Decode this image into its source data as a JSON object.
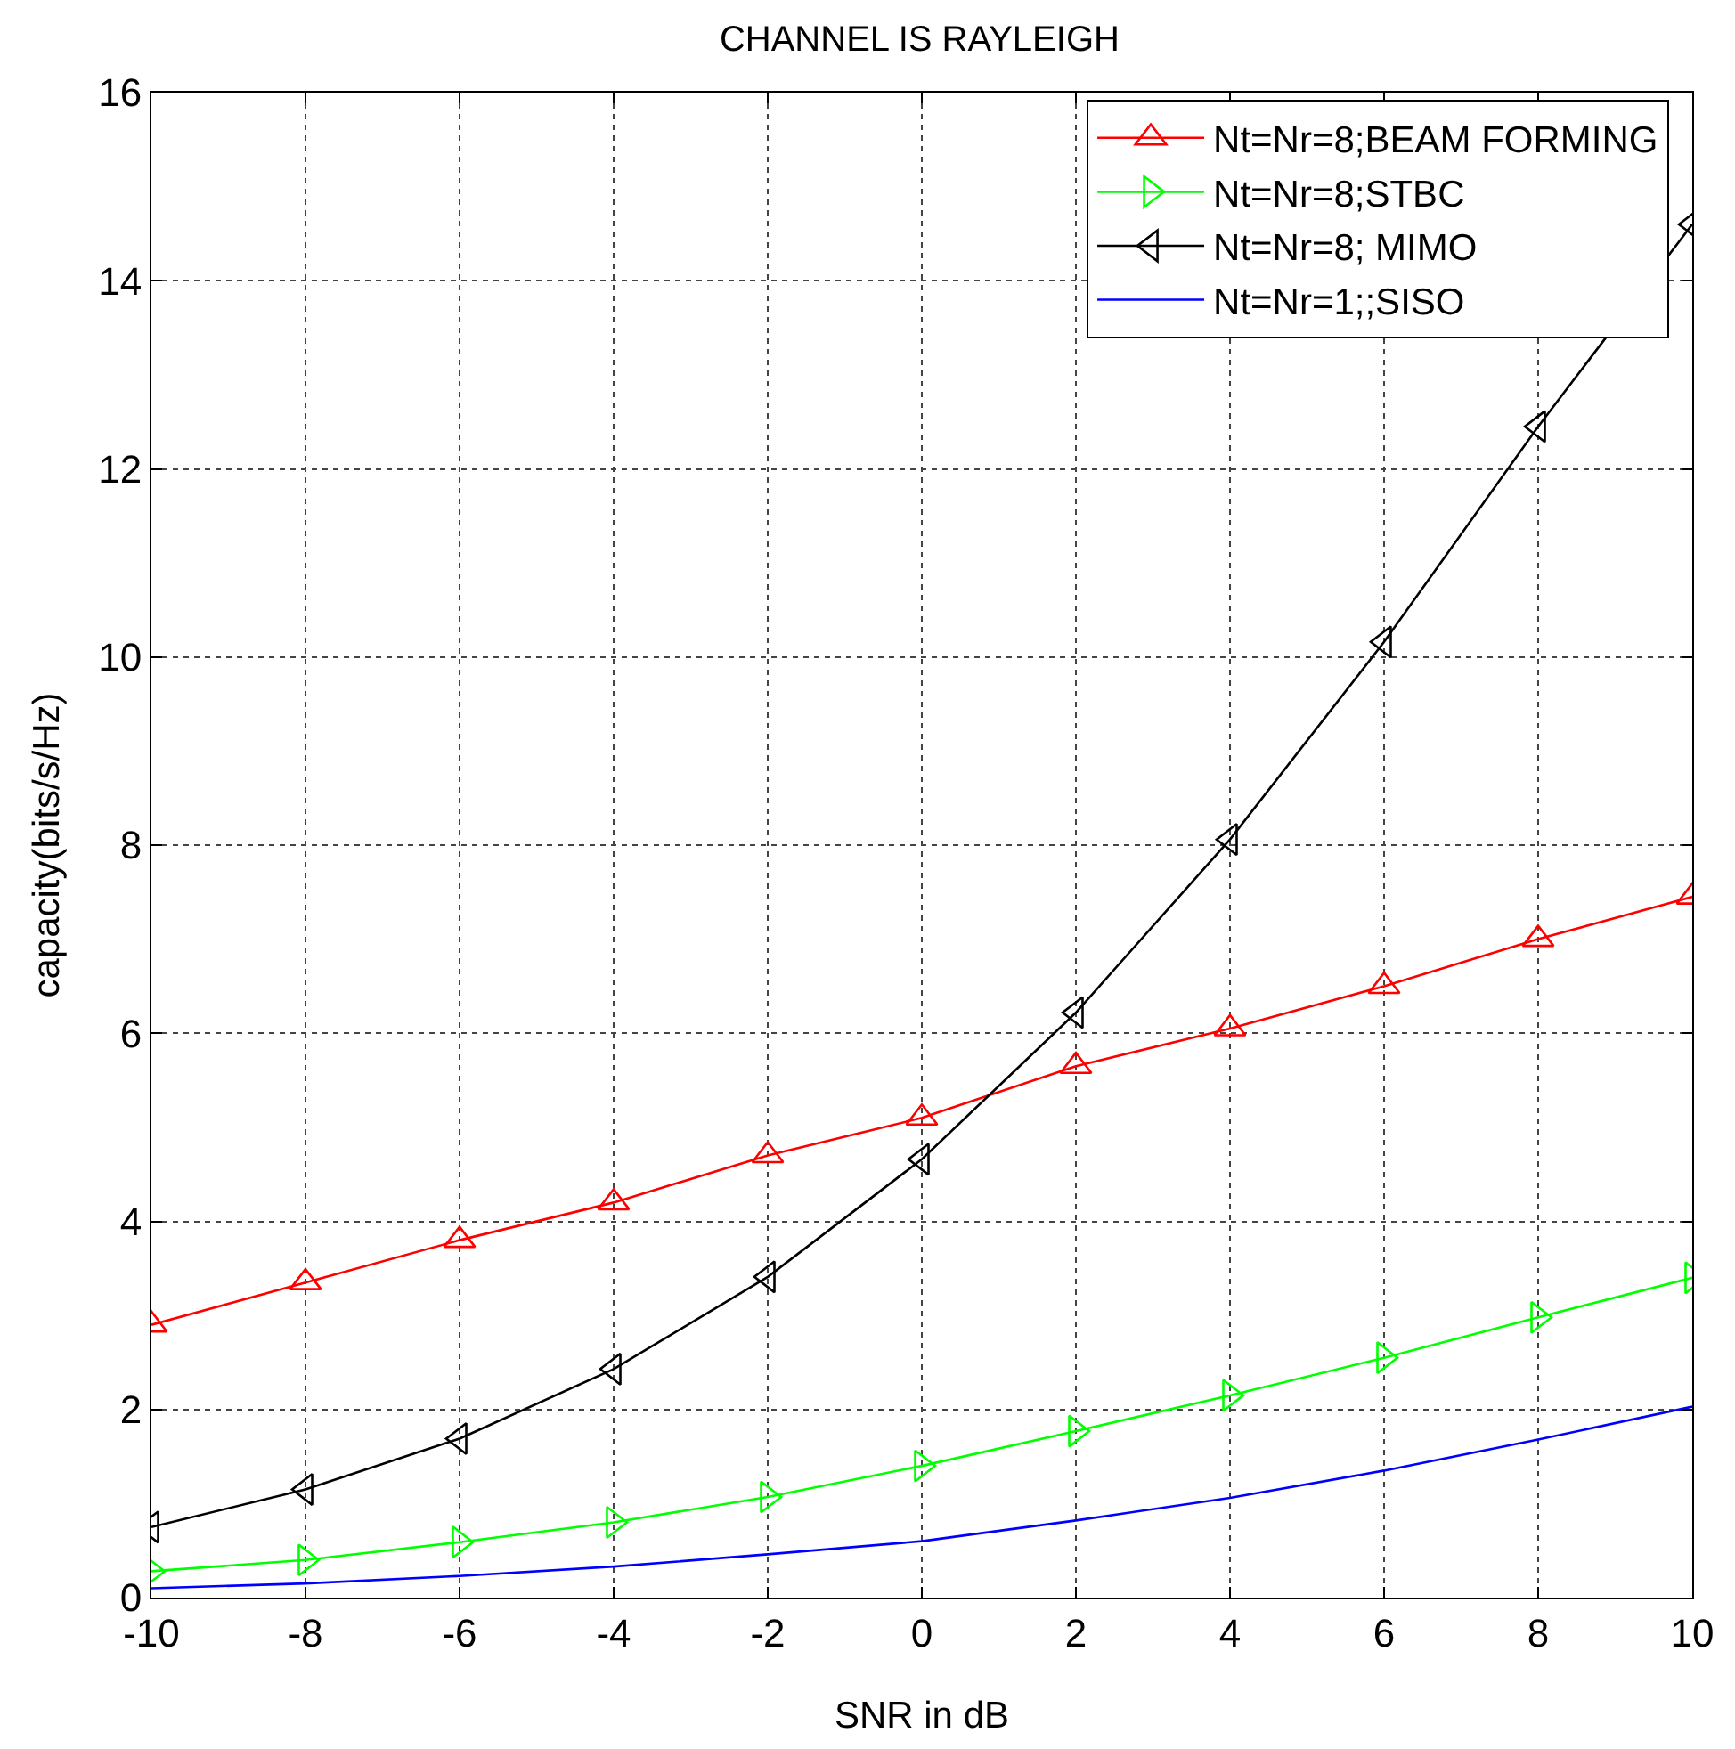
{
  "chart_data": {
    "type": "line",
    "title": "CHANNEL IS RAYLEIGH",
    "xlabel": "SNR in dB",
    "ylabel": "capacity(bits/s/Hz)",
    "x": [
      -10,
      -8,
      -6,
      -4,
      -2,
      0,
      2,
      4,
      6,
      8,
      10
    ],
    "series": [
      {
        "name": "Nt=Nr=8;BEAM FORMING",
        "color": "#ff0000",
        "marker": "triangle-up",
        "values": [
          2.9,
          3.35,
          3.8,
          4.2,
          4.7,
          5.1,
          5.65,
          6.05,
          6.5,
          7.0,
          7.45
        ]
      },
      {
        "name": "Nt=Nr=8;STBC",
        "color": "#00ff00",
        "marker": "triangle-right",
        "values": [
          0.28,
          0.4,
          0.59,
          0.8,
          1.07,
          1.4,
          1.77,
          2.15,
          2.55,
          2.98,
          3.4
        ]
      },
      {
        "name": "Nt=Nr=8; MIMO",
        "color": "#000000",
        "marker": "triangle-left",
        "values": [
          0.75,
          1.15,
          1.69,
          2.43,
          3.41,
          4.66,
          6.22,
          8.06,
          10.16,
          12.45,
          14.6
        ]
      },
      {
        "name": "Nt=Nr=1;;SISO",
        "color": "#0000ff",
        "marker": "none",
        "values": [
          0.1,
          0.15,
          0.23,
          0.33,
          0.46,
          0.6,
          0.82,
          1.06,
          1.35,
          1.68,
          2.03
        ]
      }
    ],
    "xlim": [
      -10,
      10
    ],
    "xticks": [
      -10,
      -8,
      -6,
      -4,
      -2,
      0,
      2,
      4,
      6,
      8,
      10
    ],
    "ylim": [
      0,
      16
    ],
    "yticks": [
      0,
      2,
      4,
      6,
      8,
      10,
      12,
      14,
      16
    ],
    "grid": true,
    "legend": "top right",
    "line_style": "solid"
  }
}
